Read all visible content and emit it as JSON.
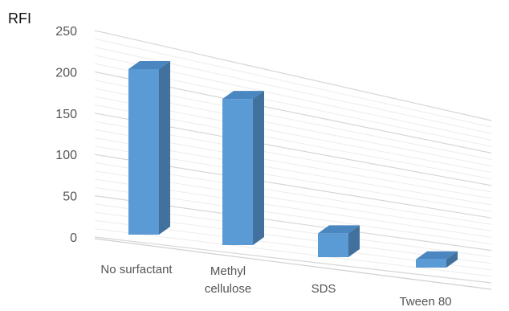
{
  "chart_data": {
    "type": "bar",
    "title": "",
    "xlabel": "",
    "ylabel": "RFI",
    "ylim": [
      0,
      250
    ],
    "yticks": [
      0,
      50,
      100,
      150,
      200,
      250
    ],
    "categories": [
      "No surfactant",
      "Methyl cellulose",
      "SDS",
      "Tween 80"
    ],
    "category_lines": [
      [
        "No surfactant"
      ],
      [
        "Methyl",
        "cellulose"
      ],
      [
        "SDS"
      ],
      [
        "Tween 80"
      ]
    ],
    "values": [
      218,
      205,
      45,
      26
    ],
    "grid": true,
    "legend": "none",
    "style": "3d-column",
    "colors": {
      "front": "#5b9bd5",
      "side": "#41719c",
      "top": "#4a86c0"
    }
  }
}
